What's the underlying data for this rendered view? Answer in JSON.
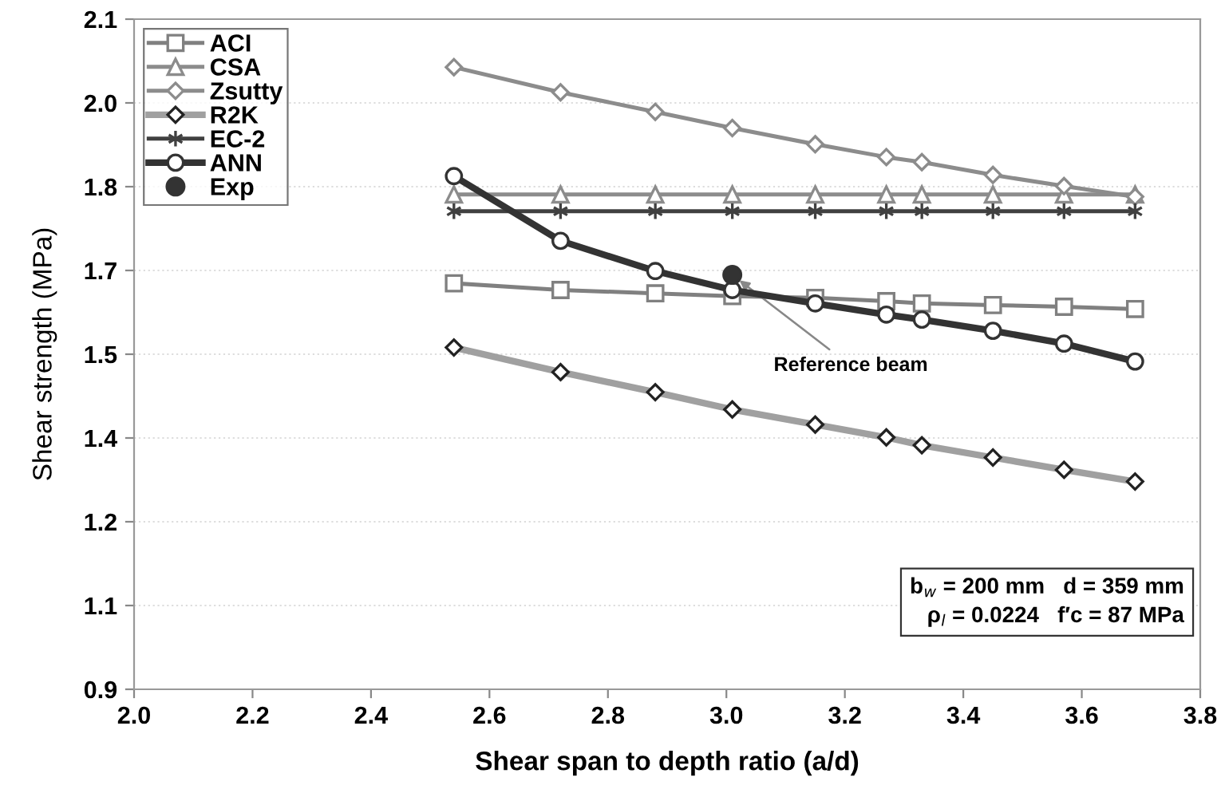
{
  "chart_data": {
    "type": "line",
    "xlabel": "Shear span to depth ratio (a/d)",
    "ylabel": "Shear strength (MPa)",
    "x": [
      2.54,
      2.72,
      2.88,
      3.01,
      3.15,
      3.27,
      3.33,
      3.45,
      3.57,
      3.69
    ],
    "series": [
      {
        "name": "ACI",
        "color": "#808080",
        "marker": "square",
        "values": [
          1.627,
          1.615,
          1.609,
          1.604,
          1.601,
          1.595,
          1.591,
          1.588,
          1.585,
          1.581
        ]
      },
      {
        "name": "CSA",
        "color": "#8c8c8c",
        "marker": "triangle",
        "values": [
          1.786,
          1.786,
          1.786,
          1.786,
          1.786,
          1.786,
          1.786,
          1.786,
          1.786,
          1.786
        ]
      },
      {
        "name": "Zsutty",
        "color": "#8c8c8c",
        "marker": "diamond",
        "values": [
          2.014,
          1.969,
          1.934,
          1.905,
          1.876,
          1.853,
          1.844,
          1.821,
          1.801,
          1.782
        ]
      },
      {
        "name": "R2K",
        "color": "#a0a0a0",
        "marker": "diamond",
        "values": [
          1.512,
          1.468,
          1.432,
          1.401,
          1.374,
          1.351,
          1.337,
          1.315,
          1.293,
          1.272
        ]
      },
      {
        "name": "EC-2",
        "color": "#404040",
        "marker": "cross",
        "values": [
          1.756,
          1.756,
          1.756,
          1.756,
          1.756,
          1.756,
          1.756,
          1.756,
          1.756,
          1.756
        ]
      },
      {
        "name": "ANN",
        "color": "#333333",
        "marker": "circle",
        "values": [
          1.819,
          1.703,
          1.649,
          1.615,
          1.591,
          1.571,
          1.562,
          1.542,
          1.519,
          1.487
        ]
      },
      {
        "name": "Exp",
        "type": "scatter",
        "color": "#333333",
        "marker": "circle",
        "x": [
          3.01
        ],
        "values": [
          1.642
        ]
      }
    ],
    "xlim": [
      2.0,
      3.8
    ],
    "xticks": [
      {
        "value": 2.0,
        "label": "2.0"
      },
      2.2,
      2.4,
      2.6,
      2.8,
      {
        "value": 3.0,
        "label": "3.0"
      },
      3.2,
      3.4,
      3.6,
      3.8
    ],
    "ylim": [
      0.9,
      2.1
    ],
    "yticks": [
      0.9,
      {
        "value": 1.05,
        "label": "1.1"
      },
      1.2,
      {
        "value": 1.35,
        "label": "1.4"
      },
      1.5,
      {
        "value": 1.65,
        "label": "1.7"
      },
      1.8,
      {
        "value": 1.95,
        "label": "2.0"
      },
      2.1
    ],
    "grid": "y",
    "legend": "top left",
    "annotations": [
      {
        "text": "Reference beam",
        "x": 3.01,
        "y": 1.642
      },
      "b$_{w}$ = 200 mm   d = 359 mm\nρ$_{l}$ = 0.0224   f′c = 87 MPa"
    ]
  }
}
